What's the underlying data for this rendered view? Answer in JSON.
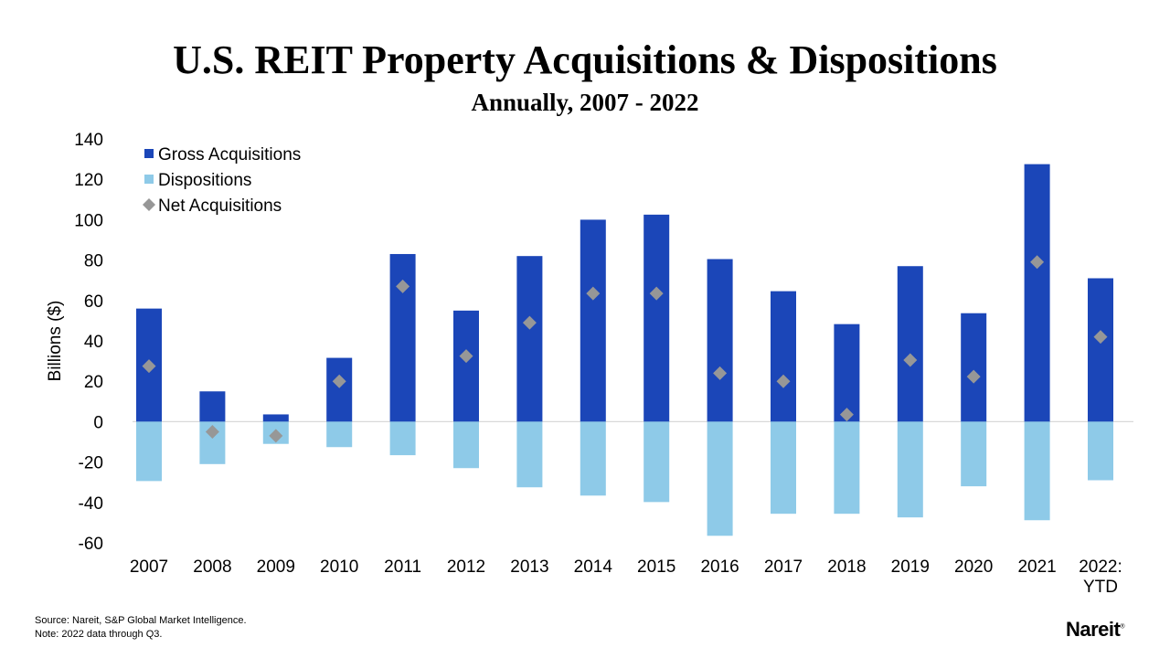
{
  "chart_data": {
    "type": "bar",
    "title": "U.S. REIT Property Acquisitions & Dispositions",
    "subtitle": "Annually, 2007 - 2022",
    "xlabel": "",
    "ylabel": "Billions ($)",
    "ylim": [
      -60,
      140
    ],
    "yticks": [
      140,
      120,
      100,
      80,
      60,
      40,
      20,
      0,
      -20,
      -40,
      -60
    ],
    "grid": false,
    "legend_position": "top-left",
    "categories": [
      "2007",
      "2008",
      "2009",
      "2010",
      "2011",
      "2012",
      "2013",
      "2014",
      "2015",
      "2016",
      "2017",
      "2018",
      "2019",
      "2020",
      "2021",
      "2022:\nYTD"
    ],
    "series": [
      {
        "name": "Gross Acquisitions",
        "type": "bar",
        "color": "#1b46b8",
        "values": [
          56,
          15,
          3.6,
          31.6,
          83,
          55,
          82,
          100,
          102.5,
          80.5,
          64.6,
          48.3,
          77,
          53.7,
          127.5,
          71
        ]
      },
      {
        "name": "Dispositions",
        "type": "bar",
        "color": "#8ecae8",
        "values": [
          -29.4,
          -21,
          -11,
          -12.6,
          -16.6,
          -23,
          -32.5,
          -36.6,
          -39.8,
          -56.5,
          -45.6,
          -45.6,
          -47.4,
          -32,
          -48.8,
          -29
        ]
      },
      {
        "name": "Net Acquisitions",
        "type": "scatter",
        "marker": "diamond",
        "color": "#979797",
        "values": [
          27.5,
          -5,
          -7,
          20,
          67,
          32.5,
          49,
          63.5,
          63.5,
          24,
          20,
          3.5,
          30.5,
          22.3,
          79,
          42
        ]
      }
    ]
  },
  "footer": {
    "source": "Source: Nareit, S&P Global Market Intelligence.",
    "note": "Note: 2022 data through Q3.",
    "logo": "Nareit"
  }
}
